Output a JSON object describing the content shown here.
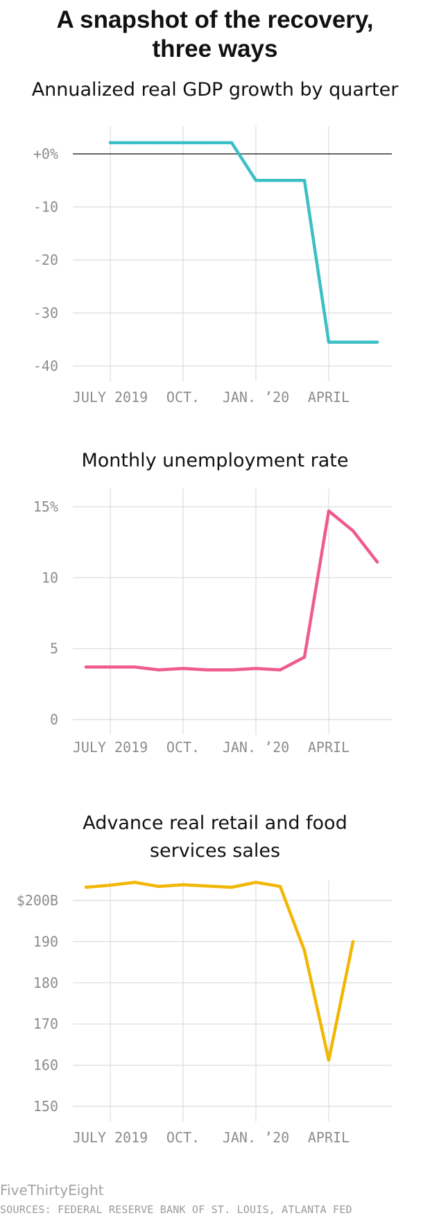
{
  "header": {
    "title_line1": "A snapshot of the recovery,",
    "title_line2": "three ways"
  },
  "footer": {
    "brand": "FiveThirtyEight",
    "sources": "SOURCES: FEDERAL RESERVE BANK OF ST. LOUIS, ATLANTA FED"
  },
  "colors": {
    "gdp": "#3bbfc6",
    "unemployment": "#ef5a8f",
    "retail": "#f2b705",
    "grid": "#dcdcdc",
    "zero_line": "#333333",
    "tick_text": "#8c8c8c"
  },
  "chart_data": [
    {
      "type": "line",
      "title": "Annualized real GDP growth by quarter",
      "x_tick_labels": [
        "JULY 2019",
        "OCT.",
        "JAN. ’20",
        "APRIL"
      ],
      "y_tick_labels": [
        "+0%",
        "-10",
        "-20",
        "-30",
        "-40"
      ],
      "y_ticks": [
        0,
        -10,
        -20,
        -30,
        -40
      ],
      "ylim": [
        -40,
        0
      ],
      "zero_line": true,
      "grid": true,
      "series": [
        {
          "x": [
            "2019-07",
            "2019-08",
            "2019-09",
            "2019-10",
            "2019-11",
            "2019-12",
            "2020-01",
            "2020-02",
            "2020-03",
            "2020-04",
            "2020-05",
            "2020-06"
          ],
          "values": [
            2.1,
            2.1,
            2.1,
            2.1,
            2.1,
            2.1,
            -5.0,
            -5.0,
            -5.0,
            -35.5,
            -35.5,
            -35.5
          ]
        }
      ]
    },
    {
      "type": "line",
      "title": "Monthly unemployment rate",
      "x_tick_labels": [
        "JULY 2019",
        "OCT.",
        "JAN. ’20",
        "APRIL"
      ],
      "y_tick_labels": [
        "15%",
        "10",
        "5",
        "0"
      ],
      "y_ticks": [
        15,
        10,
        5,
        0
      ],
      "ylim": [
        0,
        15
      ],
      "grid": true,
      "series": [
        {
          "x": [
            "2019-06",
            "2019-07",
            "2019-08",
            "2019-09",
            "2019-10",
            "2019-11",
            "2019-12",
            "2020-01",
            "2020-02",
            "2020-03",
            "2020-04",
            "2020-05",
            "2020-06"
          ],
          "values": [
            3.7,
            3.7,
            3.7,
            3.5,
            3.6,
            3.5,
            3.5,
            3.6,
            3.5,
            4.4,
            14.7,
            13.3,
            11.1
          ]
        }
      ]
    },
    {
      "type": "line",
      "title_line1": "Advance real retail and food",
      "title_line2": "services sales",
      "x_tick_labels": [
        "JULY 2019",
        "OCT.",
        "JAN. ’20",
        "APRIL"
      ],
      "y_tick_labels": [
        "$200B",
        "190",
        "180",
        "170",
        "160",
        "150"
      ],
      "y_ticks": [
        200,
        190,
        180,
        170,
        160,
        150
      ],
      "ylim": [
        150,
        200
      ],
      "grid": true,
      "series": [
        {
          "x": [
            "2019-06",
            "2019-07",
            "2019-08",
            "2019-09",
            "2019-10",
            "2019-11",
            "2019-12",
            "2020-01",
            "2020-02",
            "2020-03",
            "2020-04",
            "2020-05"
          ],
          "values": [
            203.2,
            203.7,
            204.4,
            203.4,
            203.8,
            203.5,
            203.2,
            204.4,
            203.4,
            187.8,
            161.2,
            190.0
          ]
        }
      ]
    }
  ]
}
